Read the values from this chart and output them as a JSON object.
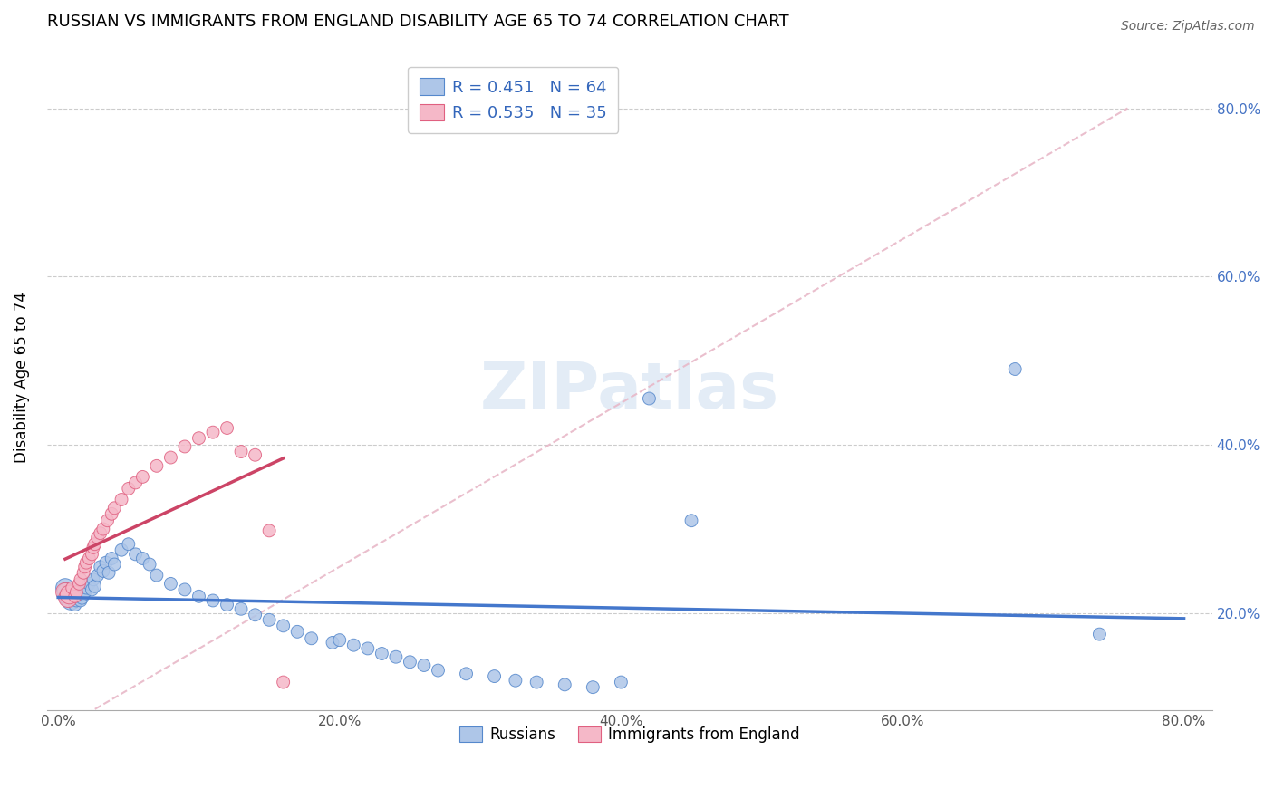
{
  "title": "RUSSIAN VS IMMIGRANTS FROM ENGLAND DISABILITY AGE 65 TO 74 CORRELATION CHART",
  "source": "Source: ZipAtlas.com",
  "ylabel": "Disability Age 65 to 74",
  "xlim": [
    0.0,
    0.8
  ],
  "ylim": [
    0.1,
    0.87
  ],
  "xticks": [
    0.0,
    0.1,
    0.2,
    0.3,
    0.4,
    0.5,
    0.6,
    0.7,
    0.8
  ],
  "xticklabels": [
    "0.0%",
    "",
    "20.0%",
    "",
    "40.0%",
    "",
    "60.0%",
    "",
    "80.0%"
  ],
  "ytick_positions": [
    0.2,
    0.4,
    0.6,
    0.8
  ],
  "ytick_labels": [
    "20.0%",
    "40.0%",
    "60.0%",
    "80.0%"
  ],
  "legend1_label": "R = 0.451   N = 64",
  "legend2_label": "R = 0.535   N = 35",
  "legend_bottom_label1": "Russians",
  "legend_bottom_label2": "Immigrants from England",
  "blue_fill": "#aec6e8",
  "pink_fill": "#f5b8c8",
  "blue_edge": "#5588cc",
  "pink_edge": "#e06080",
  "blue_line": "#4477cc",
  "pink_line": "#cc4466",
  "ref_line_color": "#e8b8c8",
  "watermark": "ZIPatlas",
  "russians_x": [
    0.005,
    0.006,
    0.007,
    0.008,
    0.009,
    0.01,
    0.011,
    0.012,
    0.013,
    0.014,
    0.015,
    0.016,
    0.017,
    0.018,
    0.019,
    0.02,
    0.022,
    0.024,
    0.025,
    0.026,
    0.028,
    0.03,
    0.032,
    0.034,
    0.036,
    0.038,
    0.04,
    0.045,
    0.05,
    0.055,
    0.06,
    0.065,
    0.07,
    0.08,
    0.09,
    0.1,
    0.11,
    0.12,
    0.13,
    0.14,
    0.15,
    0.16,
    0.17,
    0.18,
    0.195,
    0.2,
    0.21,
    0.22,
    0.23,
    0.24,
    0.25,
    0.26,
    0.27,
    0.29,
    0.31,
    0.325,
    0.34,
    0.36,
    0.38,
    0.4,
    0.42,
    0.45,
    0.68,
    0.74
  ],
  "russians_y": [
    0.23,
    0.225,
    0.22,
    0.218,
    0.215,
    0.222,
    0.228,
    0.21,
    0.215,
    0.22,
    0.225,
    0.215,
    0.218,
    0.222,
    0.225,
    0.23,
    0.235,
    0.228,
    0.24,
    0.232,
    0.245,
    0.255,
    0.25,
    0.26,
    0.248,
    0.265,
    0.258,
    0.275,
    0.282,
    0.27,
    0.265,
    0.258,
    0.245,
    0.235,
    0.228,
    0.22,
    0.215,
    0.21,
    0.205,
    0.198,
    0.192,
    0.185,
    0.178,
    0.17,
    0.165,
    0.168,
    0.162,
    0.158,
    0.152,
    0.148,
    0.142,
    0.138,
    0.132,
    0.128,
    0.125,
    0.12,
    0.118,
    0.115,
    0.112,
    0.118,
    0.455,
    0.31,
    0.49,
    0.175
  ],
  "england_x": [
    0.005,
    0.007,
    0.008,
    0.01,
    0.012,
    0.013,
    0.015,
    0.016,
    0.018,
    0.019,
    0.02,
    0.022,
    0.024,
    0.025,
    0.026,
    0.028,
    0.03,
    0.032,
    0.035,
    0.038,
    0.04,
    0.045,
    0.05,
    0.055,
    0.06,
    0.07,
    0.08,
    0.09,
    0.1,
    0.11,
    0.12,
    0.13,
    0.14,
    0.15,
    0.16
  ],
  "england_y": [
    0.225,
    0.218,
    0.222,
    0.23,
    0.22,
    0.225,
    0.235,
    0.24,
    0.248,
    0.255,
    0.26,
    0.265,
    0.27,
    0.278,
    0.282,
    0.29,
    0.295,
    0.3,
    0.31,
    0.318,
    0.325,
    0.335,
    0.348,
    0.355,
    0.362,
    0.375,
    0.385,
    0.398,
    0.408,
    0.415,
    0.42,
    0.392,
    0.388,
    0.298,
    0.118
  ]
}
